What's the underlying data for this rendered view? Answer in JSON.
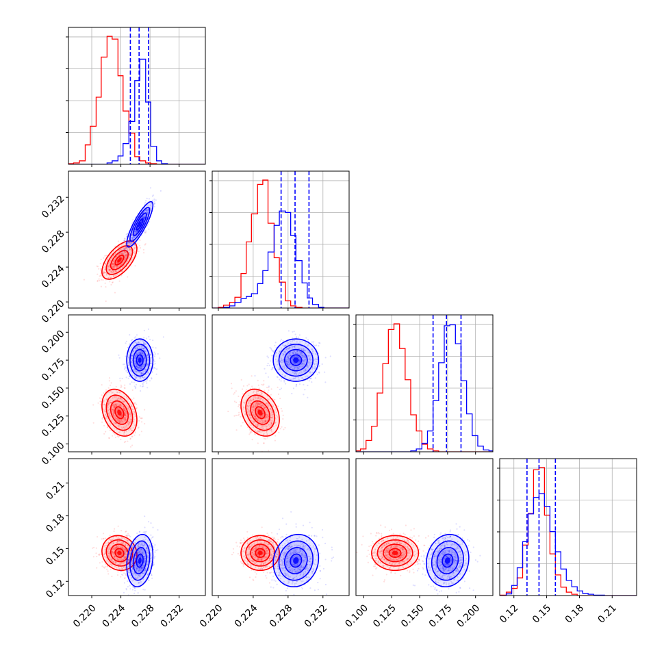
{
  "colors": {
    "red": "#ff0000",
    "blue": "#0000ff",
    "grid": "#b0b0b0"
  },
  "chart_data": {
    "type": "corner",
    "title": "",
    "parameters": [
      "",
      "",
      "",
      ""
    ],
    "axes": [
      {
        "range": [
          0.2168,
          0.2356
        ],
        "ticks": [
          0.22,
          0.224,
          0.228,
          0.232
        ],
        "tick_labels": [
          "0.220",
          "0.224",
          "0.228",
          "0.232"
        ]
      },
      {
        "range": [
          0.2193,
          0.235
        ],
        "ticks": [
          0.22,
          0.224,
          0.228,
          0.232
        ],
        "tick_labels": [
          "0.220",
          "0.224",
          "0.228",
          "0.232"
        ]
      },
      {
        "range": [
          0.093,
          0.2155
        ],
        "ticks": [
          0.1,
          0.125,
          0.15,
          0.175,
          0.2
        ],
        "tick_labels": [
          "0.100",
          "0.125",
          "0.150",
          "0.175",
          "0.200"
        ]
      },
      {
        "range": [
          0.107,
          0.2324
        ],
        "ticks": [
          0.12,
          0.15,
          0.18,
          0.21
        ],
        "tick_labels": [
          "0.12",
          "0.15",
          "0.18",
          "0.21"
        ]
      }
    ],
    "grid": true,
    "series": [
      {
        "color": "#ff0000",
        "means": [
          0.2238,
          0.2248,
          0.128,
          0.146
        ],
        "stds": [
          0.0012,
          0.0011,
          0.0105,
          0.008
        ],
        "correlations": [
          [
            0,
            1,
            0.6
          ],
          [
            0,
            2,
            -0.3
          ],
          [
            1,
            2,
            -0.3
          ],
          [
            0,
            3,
            -0.1
          ],
          [
            1,
            3,
            0.0
          ],
          [
            2,
            3,
            0.0
          ]
        ]
      },
      {
        "color": "#0000ff",
        "means": [
          0.2266,
          0.2289,
          0.175,
          0.139
        ],
        "stds": [
          0.0009,
          0.0013,
          0.0095,
          0.012
        ],
        "correlations": [
          [
            0,
            1,
            0.85
          ],
          [
            0,
            2,
            0.0
          ],
          [
            1,
            2,
            0.0
          ],
          [
            0,
            3,
            0.2
          ],
          [
            1,
            3,
            0.1
          ],
          [
            2,
            3,
            0.1
          ]
        ]
      }
    ],
    "quantile_lines": [
      {
        "param": 0,
        "values": [
          0.2253,
          0.2265,
          0.2278
        ]
      },
      {
        "param": 1,
        "values": [
          0.2272,
          0.2288,
          0.2304
        ]
      },
      {
        "param": 2,
        "values": [
          0.162,
          0.174,
          0.187
        ]
      },
      {
        "param": 3,
        "values": [
          0.132,
          0.143,
          0.158
        ]
      }
    ],
    "histograms": [
      {
        "param": 0,
        "red": {
          "edges": [
            0.2168,
            0.2175,
            0.2183,
            0.2191,
            0.2198,
            0.2206,
            0.2213,
            0.2221,
            0.2228,
            0.2236,
            0.2243,
            0.2251,
            0.2259,
            0.2266,
            0.2274,
            0.2281,
            0.2289,
            0.2296,
            0.2304,
            0.2311,
            0.2319,
            0.2356
          ],
          "counts": [
            1,
            2,
            5,
            28,
            55,
            97,
            155,
            185,
            181,
            128,
            77,
            45,
            11,
            5,
            2,
            1,
            0,
            0,
            0,
            0,
            0
          ]
        },
        "blue": {
          "edges": [
            0.2168,
            0.2221,
            0.2228,
            0.2236,
            0.2243,
            0.2251,
            0.2259,
            0.2266,
            0.2274,
            0.2281,
            0.2289,
            0.2296,
            0.2304,
            0.2311,
            0.2319,
            0.2356
          ],
          "counts": [
            0,
            2,
            5,
            12,
            30,
            62,
            121,
            152,
            90,
            26,
            5,
            1,
            0,
            0,
            0
          ]
        }
      },
      {
        "param": 1,
        "red": {
          "edges": [
            0.2193,
            0.22,
            0.2206,
            0.2213,
            0.2219,
            0.2226,
            0.2232,
            0.2238,
            0.2245,
            0.2251,
            0.2257,
            0.2264,
            0.227,
            0.2277,
            0.2283,
            0.2289,
            0.2296,
            0.2302,
            0.2308,
            0.2315,
            0.2321,
            0.235
          ],
          "counts": [
            0,
            1,
            4,
            8,
            15,
            48,
            92,
            131,
            172,
            178,
            118,
            70,
            36,
            10,
            3,
            1,
            0,
            0,
            0,
            0,
            0
          ]
        },
        "blue": {
          "edges": [
            0.2193,
            0.2206,
            0.2213,
            0.2219,
            0.2226,
            0.2232,
            0.2238,
            0.2245,
            0.2251,
            0.2257,
            0.2264,
            0.227,
            0.2277,
            0.2283,
            0.2289,
            0.2296,
            0.2302,
            0.2308,
            0.2315,
            0.2321,
            0.2328,
            0.235
          ],
          "counts": [
            0,
            1,
            3,
            8,
            13,
            16,
            20,
            34,
            52,
            78,
            115,
            135,
            133,
            101,
            66,
            35,
            14,
            5,
            1,
            0,
            0
          ]
        }
      },
      {
        "param": 2,
        "red": {
          "edges": [
            0.093,
            0.097,
            0.102,
            0.107,
            0.112,
            0.117,
            0.122,
            0.127,
            0.132,
            0.137,
            0.142,
            0.147,
            0.152,
            0.157,
            0.162,
            0.167,
            0.172,
            0.2155
          ],
          "counts": [
            1,
            3,
            12,
            27,
            62,
            93,
            129,
            135,
            109,
            76,
            39,
            22,
            8,
            3,
            1,
            0,
            0
          ]
        },
        "blue": {
          "edges": [
            0.093,
            0.142,
            0.147,
            0.152,
            0.157,
            0.162,
            0.167,
            0.172,
            0.177,
            0.182,
            0.187,
            0.192,
            0.197,
            0.202,
            0.207,
            0.212,
            0.2155
          ],
          "counts": [
            0,
            1,
            3,
            9,
            22,
            54,
            94,
            133,
            134,
            114,
            75,
            40,
            17,
            6,
            2,
            1
          ]
        }
      },
      {
        "param": 3,
        "red": {
          "edges": [
            0.107,
            0.113,
            0.118,
            0.123,
            0.128,
            0.133,
            0.138,
            0.143,
            0.148,
            0.153,
            0.158,
            0.163,
            0.168,
            0.173,
            0.178,
            0.2324
          ],
          "counts": [
            1,
            8,
            17,
            42,
            120,
            195,
            299,
            304,
            191,
            99,
            49,
            20,
            8,
            3,
            0
          ]
        },
        "blue": {
          "edges": [
            0.107,
            0.113,
            0.118,
            0.123,
            0.128,
            0.133,
            0.138,
            0.143,
            0.148,
            0.153,
            0.158,
            0.163,
            0.168,
            0.173,
            0.178,
            0.183,
            0.188,
            0.193,
            0.198,
            0.203,
            0.208,
            0.2324
          ],
          "counts": [
            0,
            4,
            24,
            66,
            128,
            194,
            233,
            242,
            212,
            152,
            104,
            63,
            36,
            21,
            11,
            5,
            3,
            1,
            1,
            0,
            0
          ]
        }
      }
    ]
  }
}
